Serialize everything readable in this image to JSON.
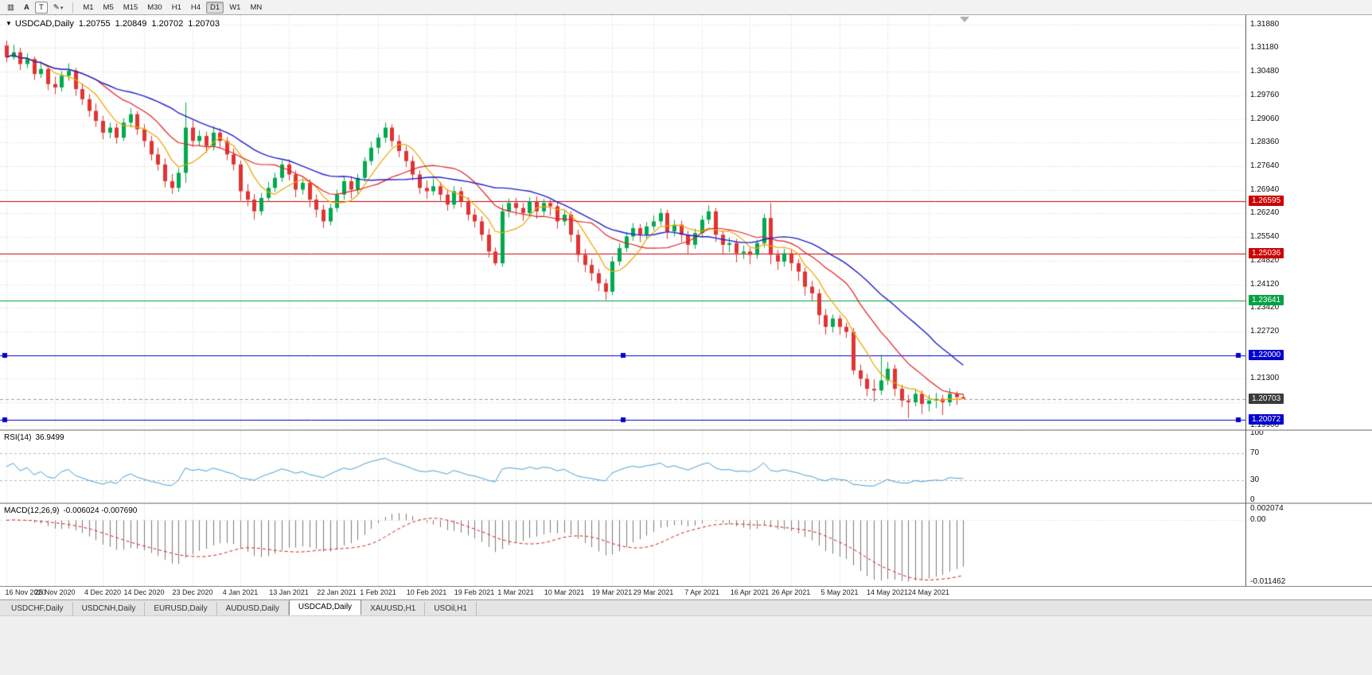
{
  "toolbar": {
    "chart_icon_glyph": "▥",
    "annotation_label": "A",
    "text_tool_label": "T",
    "draw_tool_glyph": "✎",
    "caret_glyph": "▾",
    "timeframes": [
      "M1",
      "M5",
      "M15",
      "M30",
      "H1",
      "H4",
      "D1",
      "W1",
      "MN"
    ],
    "active_timeframe": "D1"
  },
  "chart": {
    "collapse_glyph": "▼",
    "symbol": "USDCAD,Daily",
    "open": "1.20755",
    "high": "1.20849",
    "low": "1.20702",
    "close": "1.20703"
  },
  "price_axis": {
    "labels": [
      "1.31880",
      "1.31180",
      "1.30480",
      "1.29760",
      "1.29060",
      "1.28360",
      "1.27640",
      "1.26940",
      "1.26240",
      "1.25540",
      "1.24820",
      "1.24120",
      "1.23420",
      "1.22720",
      "1.22000",
      "1.21300",
      "1.20600",
      "1.19900"
    ]
  },
  "levels": [
    {
      "name": "resistance-line-1",
      "value": "1.26595",
      "price": 1.26595,
      "color": "#cc0000",
      "handles": false
    },
    {
      "name": "resistance-line-2",
      "value": "1.25036",
      "price": 1.25036,
      "color": "#cc0000",
      "handles": false
    },
    {
      "name": "support-line-green",
      "value": "1.23641",
      "price": 1.23641,
      "color": "#00a243",
      "handles": false
    },
    {
      "name": "support-line-blue-1",
      "value": "1.22000",
      "price": 1.22,
      "color": "#0000cc",
      "handles": true
    },
    {
      "name": "support-line-blue-2",
      "value": "1.20072",
      "price": 1.20072,
      "color": "#0000cc",
      "handles": true
    }
  ],
  "bid": {
    "value": "1.20703",
    "price": 1.20703,
    "badge_color": "#3a3a3a",
    "line_color": "#9a9a9a"
  },
  "date_axis": {
    "labels": [
      "16 Nov 2020",
      "25 Nov 2020",
      "4 Dec 2020",
      "14 Dec 2020",
      "23 Dec 2020",
      "4 Jan 2021",
      "13 Jan 2021",
      "22 Jan 2021",
      "1 Feb 2021",
      "10 Feb 2021",
      "19 Feb 2021",
      "1 Mar 2021",
      "10 Mar 2021",
      "19 Mar 2021",
      "29 Mar 2021",
      "7 Apr 2021",
      "16 Apr 2021",
      "26 Apr 2021",
      "5 May 2021",
      "14 May 2021",
      "24 May 2021"
    ],
    "indices": [
      0,
      7,
      14,
      20,
      27,
      34,
      41,
      48,
      54,
      61,
      68,
      74,
      81,
      88,
      94,
      101,
      108,
      114,
      121,
      128,
      134
    ]
  },
  "moving_averages": [
    {
      "period": 6,
      "color": "#f0a500"
    },
    {
      "period": 14,
      "color": "#e02020"
    },
    {
      "period": 25,
      "color": "#2020cc"
    }
  ],
  "rsi": {
    "label": "RSI(14)",
    "value": "36.9499",
    "period": 14,
    "axis_labels": [
      "100",
      "70",
      "30",
      "0"
    ],
    "levels": [
      70,
      30
    ],
    "color": "#4a9ed6"
  },
  "macd": {
    "label": "MACD(12,26,9)",
    "values": "-0.006024 -0.007690",
    "fast": 12,
    "slow": 26,
    "signal": 9,
    "axis_top": "0.002074",
    "axis_zero": "0.00",
    "axis_bottom": "-0.011462",
    "hist_color": "#7a7a7a",
    "signal_color": "#d22020"
  },
  "tabs": [
    {
      "label": "USDCHF,Daily",
      "active": false
    },
    {
      "label": "USDCNH,Daily",
      "active": false
    },
    {
      "label": "EURUSD,Daily",
      "active": false
    },
    {
      "label": "AUDUSD,Daily",
      "active": false
    },
    {
      "label": "USDCAD,Daily",
      "active": true
    },
    {
      "label": "XAUUSD,H1",
      "active": false
    },
    {
      "label": "USOil,H1",
      "active": false
    }
  ],
  "colors": {
    "bull": "#00a94f",
    "bear": "#e13434",
    "grid": "#d6d6d6",
    "axis_text": "#111111"
  },
  "chart_data": {
    "type": "candlestick",
    "symbol": "USDCAD",
    "timeframe": "Daily",
    "price_range": [
      1.199,
      1.3188
    ],
    "candles": [
      [
        1.3125,
        1.314,
        1.3075,
        1.309
      ],
      [
        1.309,
        1.3128,
        1.3082,
        1.3105
      ],
      [
        1.3105,
        1.3118,
        1.3052,
        1.307
      ],
      [
        1.307,
        1.3102,
        1.3058,
        1.3085
      ],
      [
        1.3085,
        1.3092,
        1.3022,
        1.304
      ],
      [
        1.304,
        1.3078,
        1.3028,
        1.3055
      ],
      [
        1.3055,
        1.3064,
        1.2992,
        1.301
      ],
      [
        1.301,
        1.3032,
        1.298,
        1.3
      ],
      [
        1.3,
        1.3048,
        1.2988,
        1.3035
      ],
      [
        1.3035,
        1.3072,
        1.302,
        1.305
      ],
      [
        1.305,
        1.3058,
        1.2975,
        1.2995
      ],
      [
        1.2995,
        1.3012,
        1.2948,
        1.2965
      ],
      [
        1.2965,
        1.298,
        1.2912,
        1.293
      ],
      [
        1.293,
        1.2952,
        1.2882,
        1.29
      ],
      [
        1.29,
        1.2915,
        1.2845,
        1.2865
      ],
      [
        1.2865,
        1.2895,
        1.2848,
        1.288
      ],
      [
        1.288,
        1.2892,
        1.2832,
        1.285
      ],
      [
        1.285,
        1.2908,
        1.284,
        1.2895
      ],
      [
        1.2895,
        1.2938,
        1.288,
        1.292
      ],
      [
        1.292,
        1.293,
        1.2858,
        1.2875
      ],
      [
        1.2875,
        1.289,
        1.2822,
        1.284
      ],
      [
        1.284,
        1.2855,
        1.2782,
        1.28
      ],
      [
        1.28,
        1.282,
        1.2752,
        1.277
      ],
      [
        1.277,
        1.2788,
        1.2702,
        1.272
      ],
      [
        1.272,
        1.2742,
        1.2682,
        1.27
      ],
      [
        1.27,
        1.2758,
        1.2688,
        1.2745
      ],
      [
        1.2745,
        1.2955,
        1.2715,
        1.288
      ],
      [
        1.288,
        1.2902,
        1.2822,
        1.284
      ],
      [
        1.284,
        1.2872,
        1.2825,
        1.2855
      ],
      [
        1.2855,
        1.2868,
        1.2805,
        1.2825
      ],
      [
        1.2825,
        1.2885,
        1.2812,
        1.2865
      ],
      [
        1.2865,
        1.2878,
        1.2822,
        1.284
      ],
      [
        1.284,
        1.2852,
        1.2782,
        1.28
      ],
      [
        1.28,
        1.2818,
        1.2752,
        1.277
      ],
      [
        1.277,
        1.2782,
        1.2662,
        1.269
      ],
      [
        1.269,
        1.2712,
        1.2645,
        1.2665
      ],
      [
        1.2665,
        1.2682,
        1.2605,
        1.263
      ],
      [
        1.263,
        1.2685,
        1.2618,
        1.267
      ],
      [
        1.267,
        1.2718,
        1.2658,
        1.27
      ],
      [
        1.27,
        1.2745,
        1.2688,
        1.273
      ],
      [
        1.273,
        1.2782,
        1.2718,
        1.277
      ],
      [
        1.277,
        1.2785,
        1.2722,
        1.274
      ],
      [
        1.274,
        1.2752,
        1.2672,
        1.2695
      ],
      [
        1.2695,
        1.2728,
        1.268,
        1.2715
      ],
      [
        1.2715,
        1.2725,
        1.2642,
        1.2665
      ],
      [
        1.2665,
        1.268,
        1.2612,
        1.2635
      ],
      [
        1.2635,
        1.265,
        1.258,
        1.26
      ],
      [
        1.26,
        1.2652,
        1.2588,
        1.264
      ],
      [
        1.264,
        1.2695,
        1.2628,
        1.268
      ],
      [
        1.268,
        1.2732,
        1.2665,
        1.272
      ],
      [
        1.272,
        1.2735,
        1.2668,
        1.2695
      ],
      [
        1.2695,
        1.2742,
        1.2682,
        1.273
      ],
      [
        1.273,
        1.2792,
        1.2718,
        1.278
      ],
      [
        1.278,
        1.2838,
        1.2768,
        1.282
      ],
      [
        1.282,
        1.2862,
        1.2802,
        1.285
      ],
      [
        1.285,
        1.2895,
        1.2835,
        1.288
      ],
      [
        1.288,
        1.289,
        1.2822,
        1.284
      ],
      [
        1.284,
        1.2858,
        1.2792,
        1.281
      ],
      [
        1.281,
        1.2825,
        1.2762,
        1.278
      ],
      [
        1.278,
        1.2795,
        1.2722,
        1.274
      ],
      [
        1.274,
        1.2752,
        1.2682,
        1.27
      ],
      [
        1.27,
        1.2722,
        1.2668,
        1.269
      ],
      [
        1.269,
        1.2728,
        1.2678,
        1.2705
      ],
      [
        1.2705,
        1.2718,
        1.2662,
        1.268
      ],
      [
        1.268,
        1.2695,
        1.2632,
        1.265
      ],
      [
        1.265,
        1.2705,
        1.2638,
        1.269
      ],
      [
        1.269,
        1.2702,
        1.2642,
        1.266
      ],
      [
        1.266,
        1.2672,
        1.2602,
        1.262
      ],
      [
        1.262,
        1.2638,
        1.2582,
        1.26
      ],
      [
        1.26,
        1.2615,
        1.2542,
        1.256
      ],
      [
        1.256,
        1.2578,
        1.2492,
        1.251
      ],
      [
        1.251,
        1.2522,
        1.2468,
        1.2475
      ],
      [
        1.2475,
        1.265,
        1.2465,
        1.263
      ],
      [
        1.263,
        1.2668,
        1.2612,
        1.2655
      ],
      [
        1.2655,
        1.267,
        1.2618,
        1.264
      ],
      [
        1.264,
        1.2655,
        1.2602,
        1.2625
      ],
      [
        1.2625,
        1.2672,
        1.2612,
        1.266
      ],
      [
        1.266,
        1.2675,
        1.2608,
        1.263
      ],
      [
        1.263,
        1.2668,
        1.2618,
        1.2655
      ],
      [
        1.2655,
        1.2665,
        1.2618,
        1.2645
      ],
      [
        1.2645,
        1.2658,
        1.2578,
        1.26
      ],
      [
        1.26,
        1.2632,
        1.2588,
        1.262
      ],
      [
        1.262,
        1.263,
        1.2538,
        1.256
      ],
      [
        1.256,
        1.2575,
        1.2478,
        1.25
      ],
      [
        1.25,
        1.2518,
        1.2448,
        1.247
      ],
      [
        1.247,
        1.2488,
        1.2422,
        1.2445
      ],
      [
        1.2445,
        1.2458,
        1.2392,
        1.2415
      ],
      [
        1.2415,
        1.2428,
        1.2365,
        1.239
      ],
      [
        1.239,
        1.2495,
        1.238,
        1.248
      ],
      [
        1.248,
        1.2535,
        1.2468,
        1.252
      ],
      [
        1.252,
        1.2568,
        1.2508,
        1.2555
      ],
      [
        1.2555,
        1.2595,
        1.2542,
        1.258
      ],
      [
        1.258,
        1.2592,
        1.2538,
        1.256
      ],
      [
        1.256,
        1.2598,
        1.2548,
        1.2585
      ],
      [
        1.2585,
        1.2618,
        1.2572,
        1.26
      ],
      [
        1.26,
        1.2638,
        1.2588,
        1.2625
      ],
      [
        1.2625,
        1.2635,
        1.2548,
        1.257
      ],
      [
        1.257,
        1.2605,
        1.2555,
        1.259
      ],
      [
        1.259,
        1.2602,
        1.2538,
        1.256
      ],
      [
        1.256,
        1.2572,
        1.2502,
        1.253
      ],
      [
        1.253,
        1.2578,
        1.2518,
        1.2565
      ],
      [
        1.2565,
        1.2618,
        1.2552,
        1.2605
      ],
      [
        1.2605,
        1.2648,
        1.2592,
        1.263
      ],
      [
        1.263,
        1.264,
        1.2538,
        1.256
      ],
      [
        1.256,
        1.2572,
        1.2502,
        1.253
      ],
      [
        1.253,
        1.2552,
        1.2508,
        1.2535
      ],
      [
        1.2535,
        1.2548,
        1.2478,
        1.2505
      ],
      [
        1.2505,
        1.2528,
        1.2488,
        1.251
      ],
      [
        1.251,
        1.2522,
        1.2472,
        1.25
      ],
      [
        1.25,
        1.2545,
        1.2488,
        1.2535
      ],
      [
        1.2535,
        1.2622,
        1.2522,
        1.261
      ],
      [
        1.261,
        1.2655,
        1.2472,
        1.25
      ],
      [
        1.25,
        1.2515,
        1.2455,
        1.248
      ],
      [
        1.248,
        1.2518,
        1.2465,
        1.2505
      ],
      [
        1.2505,
        1.2518,
        1.2452,
        1.2475
      ],
      [
        1.2475,
        1.2488,
        1.2422,
        1.245
      ],
      [
        1.245,
        1.2462,
        1.2378,
        1.2405
      ],
      [
        1.2405,
        1.2422,
        1.2362,
        1.2385
      ],
      [
        1.2385,
        1.2398,
        1.2292,
        1.232
      ],
      [
        1.232,
        1.2338,
        1.2262,
        1.2285
      ],
      [
        1.2285,
        1.2322,
        1.2268,
        1.231
      ],
      [
        1.231,
        1.232,
        1.2262,
        1.2285
      ],
      [
        1.2285,
        1.2298,
        1.2252,
        1.227
      ],
      [
        1.227,
        1.2282,
        1.2142,
        1.2155
      ],
      [
        1.2155,
        1.2172,
        1.2108,
        1.213
      ],
      [
        1.213,
        1.2145,
        1.2078,
        1.21
      ],
      [
        1.21,
        1.2128,
        1.2062,
        1.2095
      ],
      [
        1.2095,
        1.2202,
        1.2082,
        1.2125
      ],
      [
        1.2125,
        1.218,
        1.2112,
        1.216
      ],
      [
        1.216,
        1.2172,
        1.2078,
        1.21
      ],
      [
        1.21,
        1.2112,
        1.2045,
        1.2065
      ],
      [
        1.2065,
        1.2082,
        1.2013,
        1.206
      ],
      [
        1.206,
        1.2098,
        1.2048,
        1.2085
      ],
      [
        1.2085,
        1.2095,
        1.2025,
        1.2055
      ],
      [
        1.2055,
        1.2082,
        1.2032,
        1.2065
      ],
      [
        1.2065,
        1.2088,
        1.2042,
        1.207
      ],
      [
        1.207,
        1.2082,
        1.2022,
        1.206
      ],
      [
        1.206,
        1.2102,
        1.2048,
        1.2085
      ],
      [
        1.2085,
        1.2092,
        1.2052,
        1.2075
      ],
      [
        1.20755,
        1.20849,
        1.20702,
        1.20703
      ]
    ]
  }
}
